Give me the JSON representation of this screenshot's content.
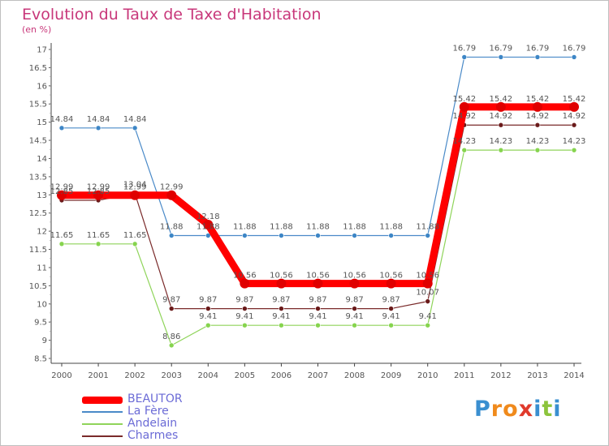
{
  "title": "Evolution du Taux de Taxe d'Habitation",
  "unit_label": "(en %)",
  "logo": {
    "letters": [
      "P",
      "r",
      "o",
      "x",
      "i",
      "t",
      "i"
    ],
    "colors": [
      "#3a8fd0",
      "#f08a1c",
      "#f08a1c",
      "#e03a2c",
      "#3a8fd0",
      "#8cc43c",
      "#3a8fd0"
    ]
  },
  "chart_data": {
    "type": "line",
    "x": [
      2000,
      2001,
      2002,
      2003,
      2004,
      2005,
      2006,
      2007,
      2008,
      2009,
      2010,
      2011,
      2012,
      2013,
      2014
    ],
    "ylim": [
      8.5,
      17
    ],
    "yticks": [
      8.5,
      9,
      9.5,
      10,
      10.5,
      11,
      11.5,
      12,
      12.5,
      13,
      13.5,
      14,
      14.5,
      15,
      15.5,
      16,
      16.5,
      17
    ],
    "grid": false,
    "legend_position": "bottom-left",
    "series": [
      {
        "name": "La Fère",
        "color": "#4a8ac8",
        "marker": "#3d86c6",
        "width": 1.2,
        "radius": 3,
        "values": [
          14.84,
          14.84,
          14.84,
          11.88,
          11.88,
          11.88,
          11.88,
          11.88,
          11.88,
          11.88,
          11.88,
          16.79,
          16.79,
          16.79,
          16.79
        ],
        "labels": [
          "14.84",
          "14.84",
          "14.84",
          "11.88",
          "11.88",
          "11.88",
          "11.88",
          "11.88",
          "11.88",
          "11.88",
          "11.88",
          "16.79",
          "16.79",
          "16.79",
          "16.79"
        ]
      },
      {
        "name": "Andelain",
        "color": "#8fd45a",
        "marker": "#86d44e",
        "width": 1.2,
        "radius": 3,
        "values": [
          11.65,
          11.65,
          11.65,
          8.86,
          9.41,
          9.41,
          9.41,
          9.41,
          9.41,
          9.41,
          9.41,
          14.23,
          14.23,
          14.23,
          14.23
        ],
        "labels": [
          "11.65",
          "11.65",
          "11.65",
          "8.86",
          "9.41",
          "9.41",
          "9.41",
          "9.41",
          "9.41",
          "9.41",
          "9.41",
          "14.23",
          "14.23",
          "14.23",
          "14.23"
        ]
      },
      {
        "name": "Charmes",
        "color": "#7a2a2a",
        "marker": "#6a1a1a",
        "width": 1.2,
        "radius": 3,
        "values": [
          12.85,
          12.85,
          13.04,
          9.87,
          9.87,
          9.87,
          9.87,
          9.87,
          9.87,
          9.87,
          10.07,
          14.92,
          14.92,
          14.92,
          14.92
        ],
        "labels": [
          "12.85",
          "12.85",
          "13.04",
          "9.87",
          "9.87",
          "9.87",
          "9.87",
          "9.87",
          "9.87",
          "9.87",
          "10.07",
          "14.92",
          "14.92",
          "14.92",
          "14.92"
        ]
      },
      {
        "name": "BEAUTOR",
        "color": "#ff0000",
        "marker": "#e00000",
        "width": 9,
        "radius": 6,
        "values": [
          12.99,
          12.99,
          12.99,
          12.99,
          12.18,
          10.56,
          10.56,
          10.56,
          10.56,
          10.56,
          10.56,
          15.42,
          15.42,
          15.42,
          15.42
        ],
        "labels": [
          "12.99",
          "12.99",
          "12.99",
          "12.99",
          "12.18",
          "10.56",
          "10.56",
          "10.56",
          "10.56",
          "10.56",
          "10.56",
          "15.42",
          "15.42",
          "15.42",
          "15.42"
        ]
      }
    ],
    "legend_order": [
      "BEAUTOR",
      "La Fère",
      "Andelain",
      "Charmes"
    ]
  }
}
